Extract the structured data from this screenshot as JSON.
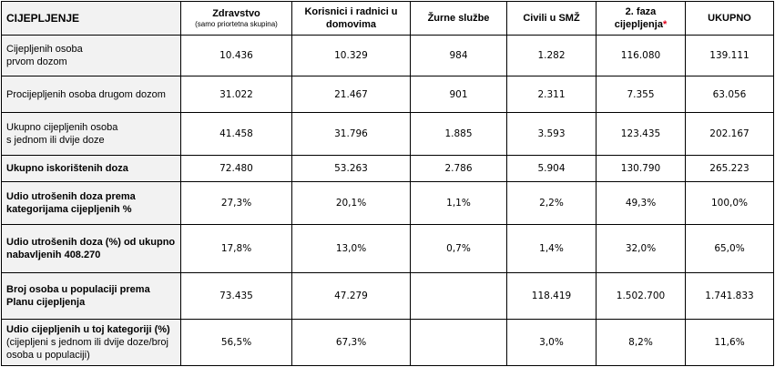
{
  "header": {
    "corner": "CIJEPLJENJE",
    "columns": [
      {
        "label": "Zdravstvo",
        "sub": "(samo priortetna skupina)"
      },
      {
        "label": "Korisnici i radnici u domovima"
      },
      {
        "label": "Žurne službe"
      },
      {
        "label": "Civili u SMŽ"
      },
      {
        "label": "2. faza cijepljenja",
        "mark": "*"
      },
      {
        "label": "UKUPNO"
      }
    ]
  },
  "rows": [
    {
      "label": "Cijepljenih osoba\nprvom dozom",
      "values": [
        "10.436",
        "10.329",
        "984",
        "1.282",
        "116.080",
        "139.111"
      ]
    },
    {
      "label": "Procijepljenih osoba drugom dozom",
      "values": [
        "31.022",
        "21.467",
        "901",
        "2.311",
        "7.355",
        "63.056"
      ]
    },
    {
      "label": "Ukupno cijepljenih osoba\ns jednom ili dvije doze",
      "values": [
        "41.458",
        "31.796",
        "1.885",
        "3.593",
        "123.435",
        "202.167"
      ]
    },
    {
      "label": "Ukupno iskorištenih doza",
      "values": [
        "72.480",
        "53.263",
        "2.786",
        "5.904",
        "130.790",
        "265.223"
      ]
    },
    {
      "label": "Udio utrošenih doza prema kategorijama cijepljenih %",
      "values": [
        "27,3%",
        "20,1%",
        "1,1%",
        "2,2%",
        "49,3%",
        "100,0%"
      ]
    },
    {
      "label": "Udio utrošenih doza (%) od ukupno nabavljenih 408.270",
      "values": [
        "17,8%",
        "13,0%",
        "0,7%",
        "1,4%",
        "32,0%",
        "65,0%"
      ]
    },
    {
      "label": "Broj osoba u populaciji prema Planu cijepljenja",
      "values": [
        "73.435",
        "47.279",
        "",
        "118.419",
        "1.502.700",
        "1.741.833"
      ]
    },
    {
      "label_bold": "Udio cijepljenih u toj kategoriji (%)",
      "label_rest": " (cijepljeni s jednom ili dvije doze/broj osoba u populaciji)",
      "values": [
        "56,5%",
        "67,3%",
        "",
        "3,0%",
        "8,2%",
        "11,6%"
      ]
    }
  ]
}
